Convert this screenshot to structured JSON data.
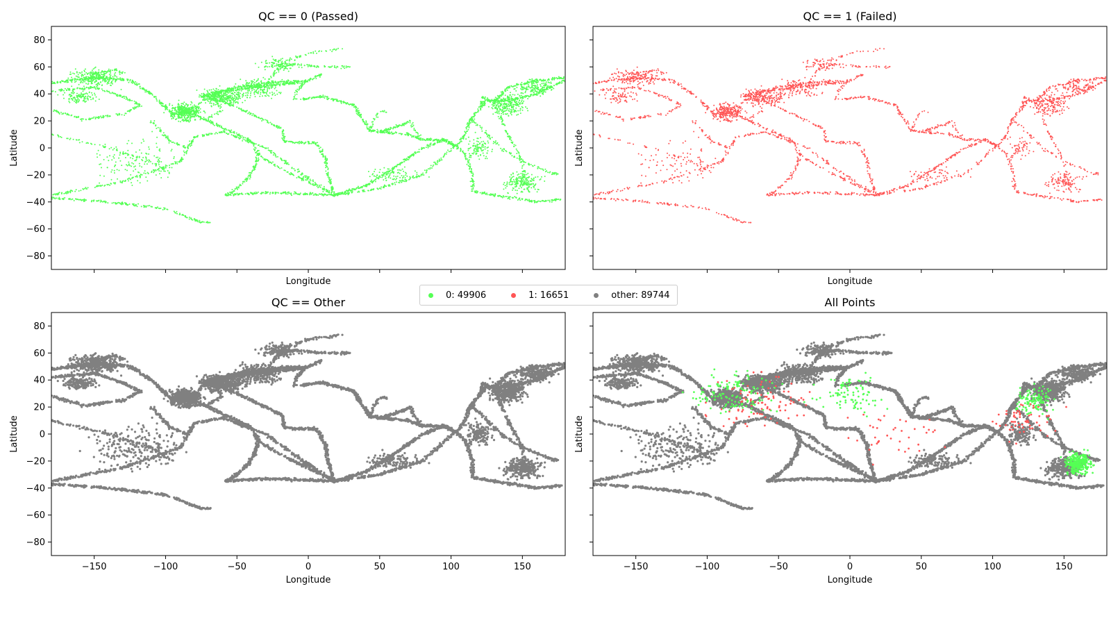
{
  "colors": {
    "qc0": "#55ff55",
    "qc1": "#ff5555",
    "other": "#808080"
  },
  "legend": [
    {
      "label": "0: 49906",
      "color": "#55ff55"
    },
    {
      "label": "1: 16651",
      "color": "#ff5555"
    },
    {
      "label": "other: 89744",
      "color": "#808080"
    }
  ],
  "chart_data": [
    {
      "type": "scatter",
      "title": "QC == 0 (Passed)",
      "xlabel": "Longitude",
      "ylabel": "Latitude",
      "xlim": [
        -180,
        180
      ],
      "ylim": [
        -90,
        90
      ],
      "xticks": [
        -150,
        -100,
        -50,
        0,
        50,
        100,
        150
      ],
      "yticks": [
        -80,
        -60,
        -40,
        -20,
        0,
        20,
        40,
        60,
        80
      ],
      "series": [
        {
          "color": "#55ff55"
        }
      ]
    },
    {
      "type": "scatter",
      "title": "QC == 1 (Failed)",
      "xlabel": "Longitude",
      "ylabel": "Latitude",
      "xlim": [
        -180,
        180
      ],
      "ylim": [
        -90,
        90
      ],
      "xticks": [
        -150,
        -100,
        -50,
        0,
        50,
        100,
        150
      ],
      "yticks": [
        -80,
        -60,
        -40,
        -20,
        0,
        20,
        40,
        60,
        80
      ],
      "series": [
        {
          "color": "#ff5555"
        }
      ]
    },
    {
      "type": "scatter",
      "title": "QC == Other",
      "xlabel": "Longitude",
      "ylabel": "Latitude",
      "xlim": [
        -180,
        180
      ],
      "ylim": [
        -90,
        90
      ],
      "xticks": [
        -150,
        -100,
        -50,
        0,
        50,
        100,
        150
      ],
      "yticks": [
        -80,
        -60,
        -40,
        -20,
        0,
        20,
        40,
        60,
        80
      ],
      "series": [
        {
          "color": "#808080"
        }
      ]
    },
    {
      "type": "scatter",
      "title": "All Points",
      "xlabel": "Longitude",
      "ylabel": "Latitude",
      "xlim": [
        -180,
        180
      ],
      "ylim": [
        -90,
        90
      ],
      "xticks": [
        -150,
        -100,
        -50,
        0,
        50,
        100,
        150
      ],
      "yticks": [
        -80,
        -60,
        -40,
        -20,
        0,
        20,
        40,
        60,
        80
      ],
      "series": [
        {
          "color": "#808080"
        },
        {
          "color": "#55ff55"
        },
        {
          "color": "#ff5555"
        }
      ]
    }
  ],
  "tracks": [
    {
      "pts": [
        [
          -180,
          48
        ],
        [
          -150,
          52
        ],
        [
          -125,
          50
        ],
        [
          -110,
          40
        ],
        [
          -95,
          25
        ],
        [
          -80,
          27
        ]
      ],
      "w": 1.0
    },
    {
      "pts": [
        [
          -180,
          42
        ],
        [
          -150,
          45
        ],
        [
          -130,
          38
        ],
        [
          -118,
          32
        ]
      ],
      "w": 0.7
    },
    {
      "pts": [
        [
          -180,
          28
        ],
        [
          -157,
          21
        ],
        [
          -130,
          25
        ],
        [
          -117,
          32
        ]
      ],
      "w": 0.6
    },
    {
      "pts": [
        [
          -180,
          -35
        ],
        [
          -130,
          -25
        ],
        [
          -90,
          -10
        ],
        [
          -79,
          8
        ]
      ],
      "w": 0.5
    },
    {
      "pts": [
        [
          -180,
          -37
        ],
        [
          -140,
          -40
        ],
        [
          -100,
          -45
        ],
        [
          -75,
          -55
        ],
        [
          -68,
          -55
        ]
      ],
      "w": 0.6
    },
    {
      "pts": [
        [
          -180,
          10
        ],
        [
          -140,
          0
        ],
        [
          -110,
          -10
        ],
        [
          -95,
          -20
        ]
      ],
      "w": 0.3
    },
    {
      "pts": [
        [
          -110,
          20
        ],
        [
          -97,
          5
        ],
        [
          -85,
          0
        ],
        [
          -80,
          8
        ],
        [
          -70,
          10
        ],
        [
          -60,
          12
        ]
      ],
      "w": 0.7
    },
    {
      "pts": [
        [
          -80,
          25
        ],
        [
          -75,
          35
        ],
        [
          -60,
          42
        ],
        [
          -30,
          46
        ],
        [
          -10,
          48
        ],
        [
          0,
          50
        ],
        [
          10,
          55
        ]
      ],
      "w": 1.0
    },
    {
      "pts": [
        [
          -75,
          38
        ],
        [
          -50,
          45
        ],
        [
          -30,
          48
        ],
        [
          -5,
          50
        ]
      ],
      "w": 0.9
    },
    {
      "pts": [
        [
          -74,
          40
        ],
        [
          -50,
          30
        ],
        [
          -30,
          20
        ],
        [
          -18,
          14
        ]
      ],
      "w": 0.8
    },
    {
      "pts": [
        [
          -80,
          25
        ],
        [
          -60,
          15
        ],
        [
          -40,
          5
        ],
        [
          -35,
          -5
        ],
        [
          -38,
          -15
        ],
        [
          -42,
          -22
        ],
        [
          -50,
          -30
        ],
        [
          -58,
          -35
        ]
      ],
      "w": 0.9
    },
    {
      "pts": [
        [
          -35,
          -5
        ],
        [
          -20,
          -15
        ],
        [
          0,
          -25
        ],
        [
          18,
          -35
        ]
      ],
      "w": 0.6
    },
    {
      "pts": [
        [
          -60,
          12
        ],
        [
          -30,
          0
        ],
        [
          -10,
          -15
        ],
        [
          18,
          -35
        ]
      ],
      "w": 0.6
    },
    {
      "pts": [
        [
          -58,
          -35
        ],
        [
          -30,
          -33
        ],
        [
          0,
          -34
        ],
        [
          18,
          -35
        ]
      ],
      "w": 0.8
    },
    {
      "pts": [
        [
          -18,
          14
        ],
        [
          -17,
          5
        ],
        [
          -10,
          4
        ],
        [
          5,
          4
        ],
        [
          8,
          0
        ],
        [
          12,
          -8
        ],
        [
          14,
          -20
        ],
        [
          18,
          -35
        ]
      ],
      "w": 0.9
    },
    {
      "pts": [
        [
          -5,
          36
        ],
        [
          10,
          38
        ],
        [
          20,
          35
        ],
        [
          32,
          32
        ],
        [
          34,
          28
        ],
        [
          43,
          13
        ],
        [
          50,
          12
        ],
        [
          60,
          15
        ],
        [
          72,
          20
        ]
      ],
      "w": 1.0
    },
    {
      "pts": [
        [
          -10,
          36
        ],
        [
          -8,
          42
        ],
        [
          -5,
          46
        ],
        [
          -2,
          49
        ]
      ],
      "w": 0.8
    },
    {
      "pts": [
        [
          18,
          -35
        ],
        [
          40,
          -28
        ],
        [
          60,
          -15
        ],
        [
          80,
          0
        ],
        [
          95,
          6
        ],
        [
          103,
          2
        ]
      ],
      "w": 1.0
    },
    {
      "pts": [
        [
          18,
          -35
        ],
        [
          50,
          -30
        ],
        [
          80,
          -20
        ],
        [
          103,
          2
        ]
      ],
      "w": 0.6
    },
    {
      "pts": [
        [
          50,
          12
        ],
        [
          70,
          10
        ],
        [
          80,
          6
        ],
        [
          95,
          6
        ],
        [
          104,
          1
        ]
      ],
      "w": 0.9
    },
    {
      "pts": [
        [
          43,
          13
        ],
        [
          48,
          25
        ],
        [
          52,
          27
        ],
        [
          56,
          26
        ]
      ],
      "w": 0.5
    },
    {
      "pts": [
        [
          72,
          20
        ],
        [
          73,
          15
        ],
        [
          78,
          8
        ],
        [
          80,
          6
        ]
      ],
      "w": 0.5
    },
    {
      "pts": [
        [
          104,
          1
        ],
        [
          110,
          10
        ],
        [
          114,
          22
        ],
        [
          121,
          30
        ],
        [
          125,
          35
        ],
        [
          140,
          35
        ],
        [
          160,
          40
        ],
        [
          180,
          50
        ]
      ],
      "w": 1.0
    },
    {
      "pts": [
        [
          121,
          30
        ],
        [
          122,
          38
        ],
        [
          130,
          33
        ],
        [
          140,
          45
        ],
        [
          160,
          50
        ],
        [
          180,
          52
        ]
      ],
      "w": 0.9
    },
    {
      "pts": [
        [
          104,
          1
        ],
        [
          110,
          -5
        ],
        [
          115,
          -20
        ],
        [
          115,
          -32
        ],
        [
          130,
          -35
        ],
        [
          150,
          -38
        ],
        [
          160,
          -40
        ],
        [
          178,
          -38
        ]
      ],
      "w": 0.8
    },
    {
      "pts": [
        [
          130,
          33
        ],
        [
          140,
          10
        ],
        [
          150,
          -10
        ],
        [
          152,
          -27
        ],
        [
          155,
          -33
        ]
      ],
      "w": 0.6
    },
    {
      "pts": [
        [
          114,
          22
        ],
        [
          125,
          10
        ],
        [
          135,
          0
        ],
        [
          150,
          -10
        ],
        [
          175,
          -20
        ]
      ],
      "w": 0.5
    },
    {
      "pts": [
        [
          -30,
          46
        ],
        [
          -20,
          60
        ],
        [
          -10,
          62
        ],
        [
          10,
          60
        ],
        [
          20,
          60
        ],
        [
          30,
          60
        ]
      ],
      "w": 0.5
    },
    {
      "pts": [
        [
          -25,
          55
        ],
        [
          -15,
          65
        ],
        [
          0,
          70
        ],
        [
          15,
          72
        ],
        [
          25,
          74
        ]
      ],
      "w": 0.3
    },
    {
      "pts": [
        [
          -150,
          55
        ],
        [
          -140,
          57
        ],
        [
          -135,
          58
        ],
        [
          -130,
          55
        ]
      ],
      "w": 0.8
    },
    {
      "pts": [
        [
          -90,
          20
        ],
        [
          -70,
          22
        ],
        [
          -60,
          28
        ],
        [
          -65,
          35
        ]
      ],
      "w": 0.6
    }
  ],
  "extra_points": [
    {
      "center": [
        -87,
        27
      ],
      "spread": [
        18,
        10
      ],
      "n": 500
    },
    {
      "center": [
        -150,
        52
      ],
      "spread": [
        28,
        10
      ],
      "n": 360
    },
    {
      "center": [
        -160,
        38
      ],
      "spread": [
        20,
        8
      ],
      "n": 160
    },
    {
      "center": [
        -60,
        38
      ],
      "spread": [
        24,
        10
      ],
      "n": 420
    },
    {
      "center": [
        -35,
        45
      ],
      "spread": [
        25,
        12
      ],
      "n": 260
    },
    {
      "center": [
        -20,
        62
      ],
      "spread": [
        22,
        8
      ],
      "n": 160
    },
    {
      "center": [
        140,
        32
      ],
      "spread": [
        20,
        14
      ],
      "n": 360
    },
    {
      "center": [
        160,
        45
      ],
      "spread": [
        22,
        10
      ],
      "n": 220
    },
    {
      "center": [
        150,
        -25
      ],
      "spread": [
        22,
        12
      ],
      "n": 260
    },
    {
      "center": [
        60,
        -20
      ],
      "spread": [
        30,
        10
      ],
      "n": 120
    },
    {
      "center": [
        -120,
        -10
      ],
      "spread": [
        55,
        28
      ],
      "n": 220
    },
    {
      "center": [
        120,
        0
      ],
      "spread": [
        15,
        15
      ],
      "n": 140
    }
  ],
  "overlay_regions": [
    {
      "series": 1,
      "center": [
        160,
        -22
      ],
      "spread": [
        14,
        12
      ],
      "n": 300
    },
    {
      "series": 1,
      "center": [
        130,
        25
      ],
      "spread": [
        25,
        18
      ],
      "n": 120
    },
    {
      "series": 1,
      "center": [
        -80,
        30
      ],
      "spread": [
        50,
        25
      ],
      "n": 140
    },
    {
      "series": 1,
      "center": [
        0,
        30
      ],
      "spread": [
        40,
        25
      ],
      "n": 90
    },
    {
      "series": 2,
      "center": [
        -60,
        25
      ],
      "spread": [
        60,
        30
      ],
      "n": 90
    },
    {
      "series": 2,
      "center": [
        120,
        10
      ],
      "spread": [
        40,
        25
      ],
      "n": 60
    },
    {
      "series": 2,
      "center": [
        30,
        0
      ],
      "spread": [
        50,
        30
      ],
      "n": 40
    }
  ]
}
